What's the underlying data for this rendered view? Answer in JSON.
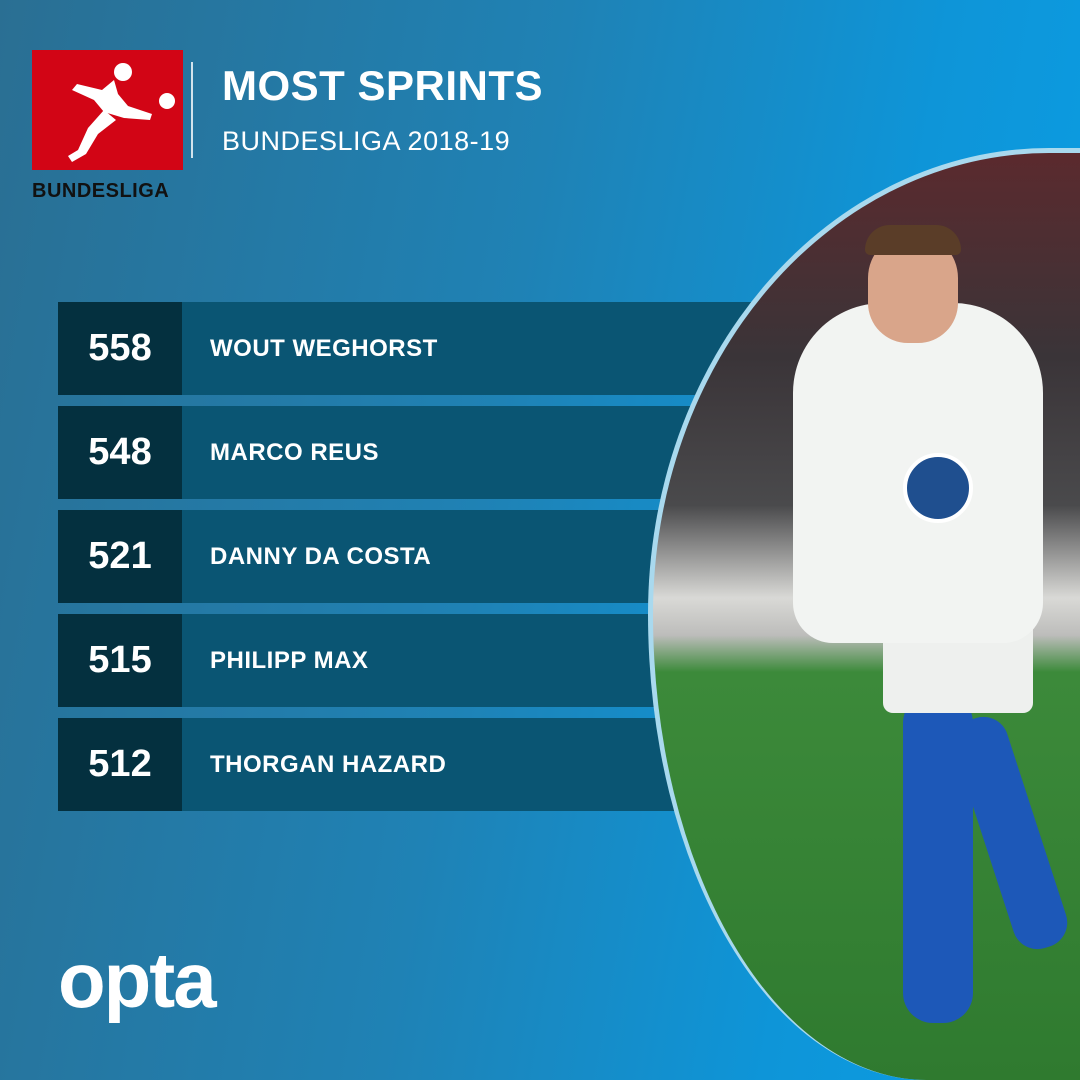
{
  "header": {
    "logo_text": "BUNDESLIGA",
    "title": "MOST SPRINTS",
    "subtitle": "BUNDESLIGA 2018-19"
  },
  "rankings": [
    {
      "value": "558",
      "player": "WOUT WEGHORST"
    },
    {
      "value": "548",
      "player": "MARCO REUS"
    },
    {
      "value": "521",
      "player": "DANNY DA COSTA"
    },
    {
      "value": "515",
      "player": "PHILIPP MAX"
    },
    {
      "value": "512",
      "player": "THORGAN HAZARD"
    }
  ],
  "footer": {
    "brand": "opta"
  },
  "colors": {
    "logo_red": "#d20515",
    "number_box": "#04303f",
    "row": "#0a5573",
    "accent_blue": "#0a9fe6"
  }
}
